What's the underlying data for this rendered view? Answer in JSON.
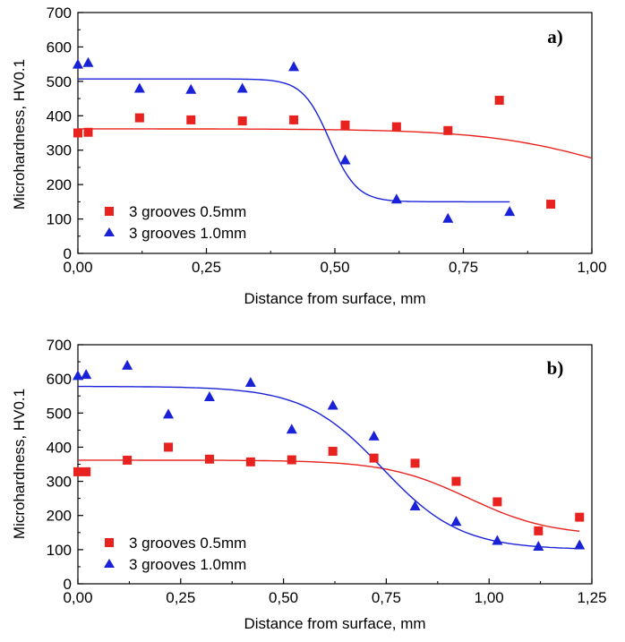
{
  "chart_data": [
    {
      "type": "scatter",
      "panel_label": "a)",
      "xlabel": "Distance from surface, mm",
      "ylabel": "Microhardness, HV0.1",
      "xlim": [
        0,
        1.0
      ],
      "ylim": [
        0,
        700
      ],
      "x_ticks": [
        "0,00",
        "0,25",
        "0,50",
        "0,75",
        "1,00"
      ],
      "y_ticks": [
        "0",
        "100",
        "200",
        "300",
        "400",
        "500",
        "600",
        "700"
      ],
      "grid": false,
      "legend_position": "bottom-left",
      "series": [
        {
          "name": "3 grooves 0.5mm",
          "marker": "square",
          "color": "#e8231f",
          "points": [
            [
              0.0,
              350
            ],
            [
              0.02,
              352
            ],
            [
              0.12,
              394
            ],
            [
              0.22,
              388
            ],
            [
              0.32,
              385
            ],
            [
              0.42,
              388
            ],
            [
              0.52,
              373
            ],
            [
              0.62,
              368
            ],
            [
              0.72,
              357
            ],
            [
              0.82,
              445
            ],
            [
              0.92,
              143
            ]
          ],
          "fit": {
            "top": 362,
            "bottom": 150,
            "x0": 1.05,
            "k": 8,
            "x_range": [
              0.0,
              1.0
            ]
          }
        },
        {
          "name": "3 grooves 1.0mm",
          "marker": "triangle",
          "color": "#1a22d8",
          "points": [
            [
              0.0,
              550
            ],
            [
              0.02,
              555
            ],
            [
              0.12,
              480
            ],
            [
              0.22,
              477
            ],
            [
              0.32,
              480
            ],
            [
              0.42,
              543
            ],
            [
              0.52,
              272
            ],
            [
              0.62,
              158
            ],
            [
              0.72,
              102
            ],
            [
              0.84,
              122
            ]
          ],
          "fit": {
            "top": 507,
            "bottom": 150,
            "x0": 0.49,
            "k": 38,
            "x_range": [
              0.0,
              0.84
            ]
          }
        }
      ]
    },
    {
      "type": "scatter",
      "panel_label": "b)",
      "xlabel": "Distance from surface, mm",
      "ylabel": "Microhardness, HV0.1",
      "xlim": [
        0,
        1.25
      ],
      "ylim": [
        0,
        700
      ],
      "x_ticks": [
        "0,00",
        "0,25",
        "0,50",
        "0,75",
        "1,00",
        "1,25"
      ],
      "y_ticks": [
        "0",
        "100",
        "200",
        "300",
        "400",
        "500",
        "600",
        "700"
      ],
      "grid": false,
      "legend_position": "bottom-left",
      "series": [
        {
          "name": "3 grooves 0.5mm",
          "marker": "square",
          "color": "#e8231f",
          "points": [
            [
              0.0,
              328
            ],
            [
              0.02,
              328
            ],
            [
              0.12,
              362
            ],
            [
              0.22,
              400
            ],
            [
              0.32,
              365
            ],
            [
              0.42,
              357
            ],
            [
              0.52,
              363
            ],
            [
              0.62,
              388
            ],
            [
              0.72,
              368
            ],
            [
              0.82,
              353
            ],
            [
              0.92,
              300
            ],
            [
              1.02,
              240
            ],
            [
              1.12,
              155
            ],
            [
              1.22,
              195
            ]
          ],
          "fit": {
            "top": 362,
            "bottom": 140,
            "x0": 0.95,
            "k": 10,
            "x_range": [
              0.0,
              1.22
            ]
          }
        },
        {
          "name": "3 grooves 1.0mm",
          "marker": "triangle",
          "color": "#1a22d8",
          "points": [
            [
              0.0,
              610
            ],
            [
              0.02,
              613
            ],
            [
              0.12,
              640
            ],
            [
              0.22,
              497
            ],
            [
              0.32,
              548
            ],
            [
              0.42,
              590
            ],
            [
              0.52,
              453
            ],
            [
              0.62,
              523
            ],
            [
              0.72,
              433
            ],
            [
              0.82,
              228
            ],
            [
              0.92,
              183
            ],
            [
              1.02,
              127
            ],
            [
              1.12,
              110
            ],
            [
              1.22,
              114
            ]
          ],
          "fit": {
            "top": 578,
            "bottom": 100,
            "x0": 0.74,
            "k": 10.5,
            "x_range": [
              0.0,
              1.22
            ]
          }
        }
      ]
    }
  ]
}
